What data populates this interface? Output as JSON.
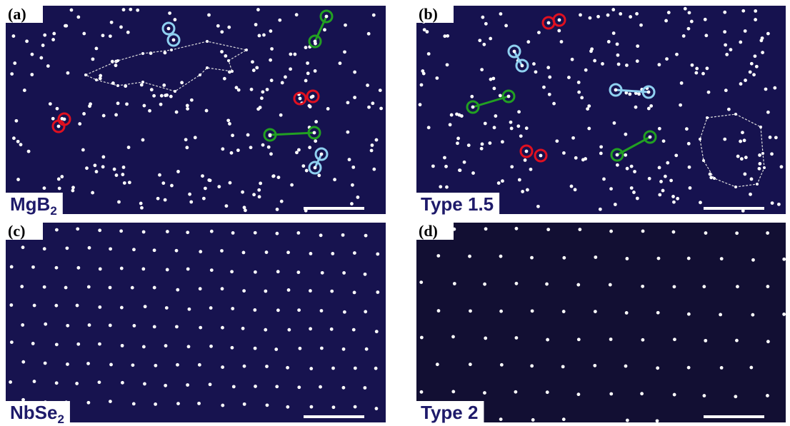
{
  "panels": [
    {
      "label": "(a)",
      "name": "MgB",
      "name_sub": "2"
    },
    {
      "label": "(b)",
      "name": "Type 1.5"
    },
    {
      "label": "(c)",
      "name": "NbSe",
      "name_sub": "2"
    },
    {
      "label": "(d)",
      "name": "Type 2"
    }
  ]
}
